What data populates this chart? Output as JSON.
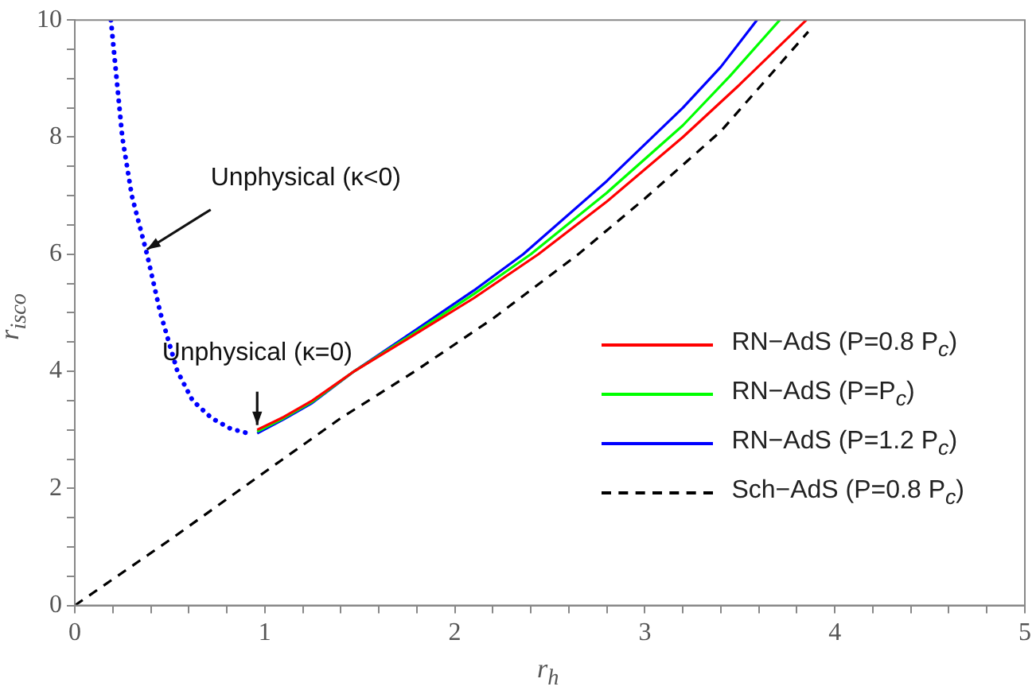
{
  "chart_data": {
    "type": "line",
    "xlabel": "r$_{h}$",
    "ylabel": "r$_{isco}$",
    "xlim": [
      0,
      5
    ],
    "ylim": [
      0,
      10
    ],
    "xticks": [
      0,
      {
        "value": 0.2,
        "label": null
      },
      {
        "value": 0.4,
        "label": null
      },
      {
        "value": 0.6,
        "label": null
      },
      {
        "value": 0.8,
        "label": null
      },
      1,
      {
        "value": 1.2,
        "label": null
      },
      {
        "value": 1.4,
        "label": null
      },
      {
        "value": 1.6,
        "label": null
      },
      {
        "value": 1.8,
        "label": null
      },
      2,
      {
        "value": 2.2,
        "label": null
      },
      {
        "value": 2.4,
        "label": null
      },
      {
        "value": 2.6,
        "label": null
      },
      {
        "value": 2.8,
        "label": null
      },
      3,
      {
        "value": 3.2,
        "label": null
      },
      {
        "value": 3.4,
        "label": null
      },
      {
        "value": 3.6,
        "label": null
      },
      {
        "value": 3.8,
        "label": null
      },
      4,
      {
        "value": 4.2,
        "label": null
      },
      {
        "value": 4.4,
        "label": null
      },
      {
        "value": 4.6,
        "label": null
      },
      {
        "value": 4.8,
        "label": null
      },
      5
    ],
    "yticks": [
      0,
      {
        "value": 0.5,
        "label": null
      },
      {
        "value": 1,
        "label": null
      },
      {
        "value": 1.5,
        "label": null
      },
      2,
      {
        "value": 2.5,
        "label": null
      },
      {
        "value": 3,
        "label": null
      },
      {
        "value": 3.5,
        "label": null
      },
      4,
      {
        "value": 4.5,
        "label": null
      },
      {
        "value": 5,
        "label": null
      },
      {
        "value": 5.5,
        "label": null
      },
      6,
      {
        "value": 6.5,
        "label": null
      },
      {
        "value": 7,
        "label": null
      },
      {
        "value": 7.5,
        "label": null
      },
      8,
      {
        "value": 8.5,
        "label": null
      },
      {
        "value": 9,
        "label": null
      },
      {
        "value": 9.5,
        "label": null
      },
      10
    ],
    "grid": false,
    "legend": "bottom right",
    "marker": "none",
    "annotations": [
      {
        "text": "Unphysical (κ<0)",
        "x": 0.38,
        "y": 6
      },
      {
        "text": "Unphysical (κ=0)",
        "x": 0.96,
        "y": 3.0
      }
    ],
    "series": [
      {
        "color": "#0000ff",
        "line_style": "dotted",
        "x": [
          0.19,
          0.22,
          0.25,
          0.3,
          0.38,
          0.45,
          0.54,
          0.62,
          0.72,
          0.82,
          0.9
        ],
        "values": [
          10,
          9,
          8,
          7,
          6,
          5,
          4,
          3.5,
          3.2,
          3.02,
          2.95
        ]
      },
      {
        "name": "RN−AdS (P=0.8 P$_{c}$)",
        "color": "#ff0000",
        "line_style": "solid",
        "x": [
          0.96,
          1.1,
          1.25,
          1.47,
          1.8,
          2.1,
          2.44,
          2.8,
          3.2,
          3.5,
          3.85
        ],
        "values": [
          3.0,
          3.22,
          3.5,
          4.0,
          4.65,
          5.25,
          6.0,
          6.9,
          8.0,
          8.9,
          10
        ]
      },
      {
        "name": "RN−AdS (P=P$_{c}$)",
        "color": "#00ff00",
        "line_style": "solid",
        "x": [
          0.96,
          1.1,
          1.25,
          1.47,
          1.8,
          2.1,
          2.4,
          2.8,
          3.2,
          3.45,
          3.71
        ],
        "values": [
          2.97,
          3.2,
          3.48,
          4.0,
          4.68,
          5.32,
          6.0,
          7.05,
          8.2,
          9.05,
          10
        ]
      },
      {
        "name": "RN−AdS (P=1.2 P$_{c}$)",
        "color": "#0000ff",
        "line_style": "solid",
        "x": [
          0.96,
          1.1,
          1.25,
          1.47,
          1.8,
          2.1,
          2.36,
          2.8,
          3.2,
          3.4,
          3.59
        ],
        "values": [
          2.94,
          3.18,
          3.46,
          4.0,
          4.72,
          5.38,
          6.0,
          7.25,
          8.5,
          9.2,
          10
        ]
      },
      {
        "name": "Sch−AdS (P=0.8 P$_{c}$)",
        "color": "#000000",
        "line_style": "dashed",
        "x": [
          0,
          0.5,
          1,
          1.4,
          1.79,
          2.2,
          2.65,
          3.0,
          3.4,
          3.86
        ],
        "values": [
          0,
          1.12,
          2.28,
          3.2,
          4.0,
          4.9,
          6.0,
          6.95,
          8.1,
          9.8
        ]
      }
    ]
  }
}
